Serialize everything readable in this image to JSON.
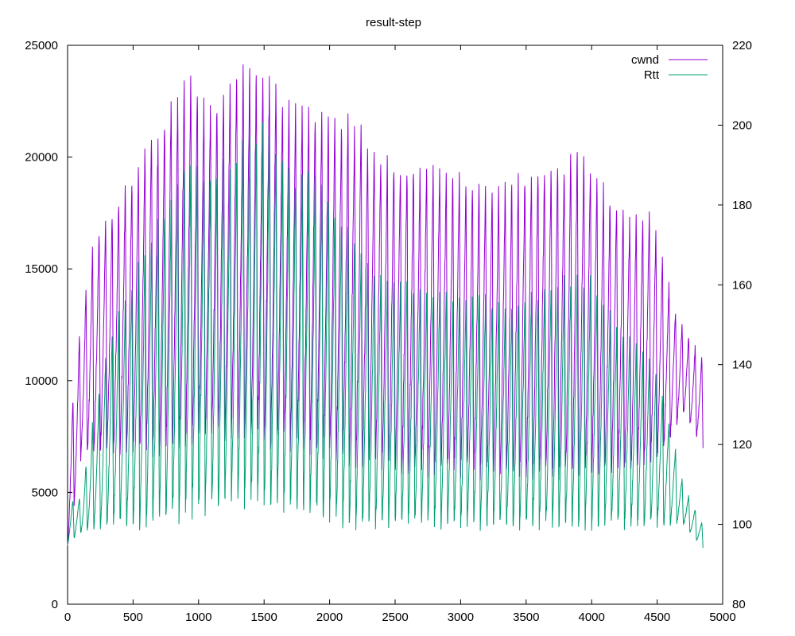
{
  "chart_data": {
    "type": "line",
    "title": "result-step",
    "xlabel": "",
    "ylabel": "",
    "y2label": "",
    "xlim": [
      0,
      5000
    ],
    "ylim": [
      0,
      25000
    ],
    "y2lim": [
      80,
      220
    ],
    "x_ticks": [
      0,
      500,
      1000,
      1500,
      2000,
      2500,
      3000,
      3500,
      4000,
      4500,
      5000
    ],
    "y_ticks": [
      0,
      5000,
      10000,
      15000,
      20000,
      25000
    ],
    "y2_ticks": [
      80,
      100,
      120,
      140,
      160,
      180,
      200,
      220
    ],
    "grid": false,
    "legend_position": "top-right",
    "series": [
      {
        "name": "cwnd",
        "axis": "y",
        "color": "#9400d3",
        "x_range": [
          0,
          4850
        ],
        "period": 50,
        "envelope_peaks": [
          [
            0,
            7000
          ],
          [
            100,
            12800
          ],
          [
            200,
            16500
          ],
          [
            300,
            17500
          ],
          [
            400,
            18500
          ],
          [
            500,
            19500
          ],
          [
            600,
            21000
          ],
          [
            700,
            21500
          ],
          [
            800,
            23000
          ],
          [
            950,
            23800
          ],
          [
            1100,
            22500
          ],
          [
            1300,
            24300
          ],
          [
            1500,
            24300
          ],
          [
            1700,
            22600
          ],
          [
            1900,
            22500
          ],
          [
            2050,
            22000
          ],
          [
            2200,
            22000
          ],
          [
            2300,
            21000
          ],
          [
            2500,
            20000
          ],
          [
            2700,
            20000
          ],
          [
            2900,
            19800
          ],
          [
            3100,
            19000
          ],
          [
            3300,
            19000
          ],
          [
            3500,
            19500
          ],
          [
            3600,
            20000
          ],
          [
            3800,
            20000
          ],
          [
            3900,
            20800
          ],
          [
            4100,
            18800
          ],
          [
            4300,
            17500
          ],
          [
            4450,
            18000
          ],
          [
            4550,
            15500
          ],
          [
            4650,
            13000
          ],
          [
            4750,
            12000
          ],
          [
            4850,
            11000
          ]
        ],
        "envelope_troughs": [
          [
            0,
            2500
          ],
          [
            100,
            6500
          ],
          [
            200,
            7000
          ],
          [
            400,
            7000
          ],
          [
            700,
            7000
          ],
          [
            1000,
            7500
          ],
          [
            1300,
            7800
          ],
          [
            1500,
            7500
          ],
          [
            1800,
            7000
          ],
          [
            2200,
            6500
          ],
          [
            2600,
            6000
          ],
          [
            3000,
            6000
          ],
          [
            3400,
            5800
          ],
          [
            3800,
            5800
          ],
          [
            4200,
            6000
          ],
          [
            4500,
            6500
          ],
          [
            4700,
            8500
          ],
          [
            4850,
            7000
          ]
        ]
      },
      {
        "name": "Rtt",
        "axis": "y2",
        "color": "#009e73",
        "x_range": [
          0,
          4850
        ],
        "period": 50,
        "envelope_peaks": [
          [
            0,
            106
          ],
          [
            100,
            107
          ],
          [
            200,
            128
          ],
          [
            300,
            145
          ],
          [
            400,
            155
          ],
          [
            500,
            163
          ],
          [
            600,
            170
          ],
          [
            700,
            178
          ],
          [
            800,
            183
          ],
          [
            950,
            193
          ],
          [
            1100,
            190
          ],
          [
            1300,
            195
          ],
          [
            1500,
            203
          ],
          [
            1700,
            190
          ],
          [
            1900,
            188
          ],
          [
            2050,
            180
          ],
          [
            2200,
            172
          ],
          [
            2400,
            163
          ],
          [
            2600,
            162
          ],
          [
            2800,
            160
          ],
          [
            3000,
            158
          ],
          [
            3200,
            158
          ],
          [
            3400,
            155
          ],
          [
            3600,
            160
          ],
          [
            3800,
            163
          ],
          [
            4000,
            163
          ],
          [
            4200,
            150
          ],
          [
            4400,
            145
          ],
          [
            4500,
            138
          ],
          [
            4600,
            125
          ],
          [
            4700,
            110
          ],
          [
            4850,
            100
          ]
        ],
        "envelope_troughs": [
          [
            0,
            95
          ],
          [
            100,
            98
          ],
          [
            300,
            100
          ],
          [
            500,
            100
          ],
          [
            800,
            102
          ],
          [
            1000,
            104
          ],
          [
            1300,
            106
          ],
          [
            1500,
            105
          ],
          [
            1800,
            104
          ],
          [
            2200,
            100
          ],
          [
            2600,
            101
          ],
          [
            3000,
            100
          ],
          [
            3400,
            100
          ],
          [
            3800,
            100
          ],
          [
            4200,
            100
          ],
          [
            4500,
            100
          ],
          [
            4700,
            100
          ],
          [
            4850,
            94
          ]
        ]
      }
    ]
  }
}
